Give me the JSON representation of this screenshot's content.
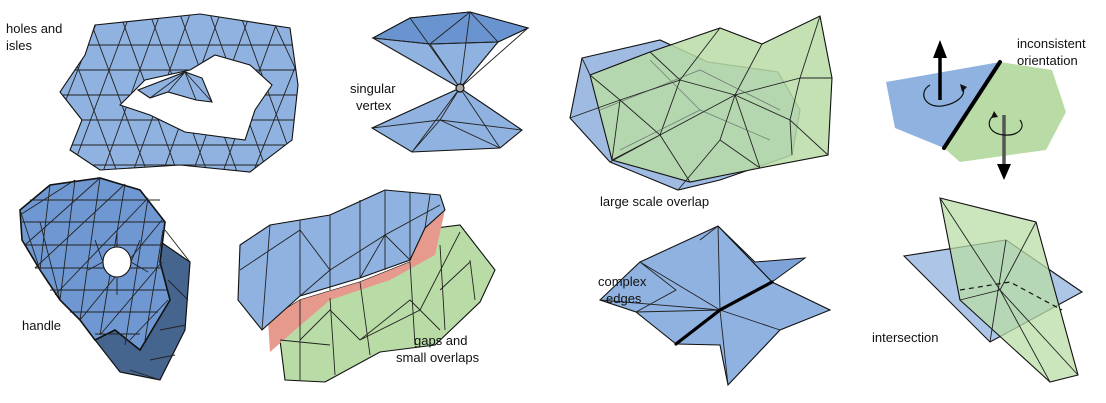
{
  "colors": {
    "blue_fill": "#8fb2e0",
    "blue_dark": "#5f86bd",
    "green_fill": "#b9dca6",
    "red_gap": "#e59a8d",
    "edge": "#111111"
  },
  "panels": {
    "holes": {
      "label_line1": "holes and",
      "label_line2": "isles"
    },
    "singular": {
      "label_line1": "singular",
      "label_line2": "vertex"
    },
    "overlap": {
      "label": "large scale overlap"
    },
    "orientation": {
      "label_line1": "inconsistent",
      "label_line2": "orientation"
    },
    "handle": {
      "label": "handle"
    },
    "gaps": {
      "label_line1": "gaps and",
      "label_line2": "small overlaps"
    },
    "complex": {
      "label_line1": "complex",
      "label_line2": "edges"
    },
    "intersection": {
      "label": "intersection"
    }
  }
}
